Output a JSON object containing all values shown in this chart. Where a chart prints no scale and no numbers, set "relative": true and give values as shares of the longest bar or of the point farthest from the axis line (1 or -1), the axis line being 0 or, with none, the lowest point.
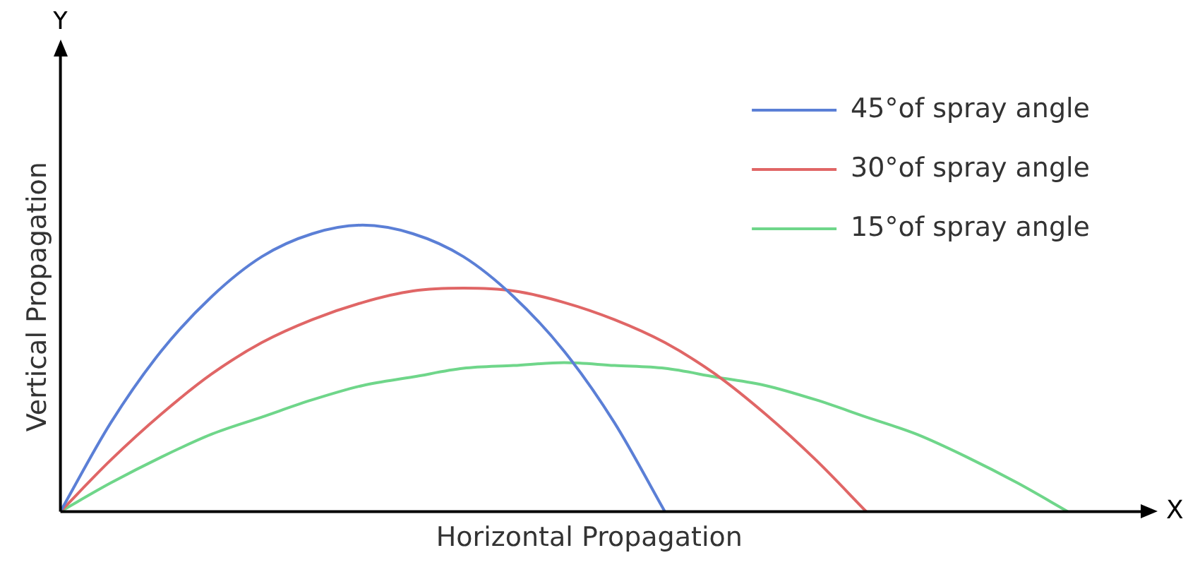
{
  "chart_data": {
    "type": "line",
    "relative": true,
    "xlabel": "Horizontal Propagation",
    "ylabel": "Vertical Propagation",
    "annotations": [
      "Y",
      "X"
    ],
    "legend": "top right",
    "grid": false,
    "marker": "none",
    "line_style": "solid",
    "categories": [
      null,
      null,
      null,
      null,
      null,
      null,
      null,
      null,
      null,
      null,
      null,
      null,
      null,
      null,
      null,
      null,
      null,
      null,
      null,
      null,
      null,
      null
    ],
    "series": [
      {
        "name": "45°of spray angle",
        "color": "#5b7fd6",
        "values": [
          0,
          0.31,
          0.56,
          0.75,
          0.89,
          0.97,
          1,
          0.97,
          0.89,
          0.75,
          0.56,
          0.31,
          0,
          null,
          null,
          null,
          null,
          null,
          null,
          null,
          null,
          null
        ]
      },
      {
        "name": "30°of spray angle",
        "color": "#e06666",
        "values": [
          0,
          0.18,
          0.34,
          0.48,
          0.59,
          0.67,
          0.73,
          0.77,
          0.78,
          0.77,
          0.73,
          0.67,
          0.59,
          0.48,
          0.34,
          0.18,
          0,
          null,
          null,
          null,
          null,
          null
        ]
      },
      {
        "name": "15°of spray angle",
        "color": "#6fd68a",
        "values": [
          0,
          0.1,
          0.19,
          0.27,
          0.33,
          0.39,
          0.44,
          0.47,
          0.5,
          0.51,
          0.52,
          0.51,
          0.5,
          0.47,
          0.44,
          0.39,
          0.33,
          0.27,
          0.19,
          0.1,
          0,
          null
        ]
      }
    ]
  }
}
